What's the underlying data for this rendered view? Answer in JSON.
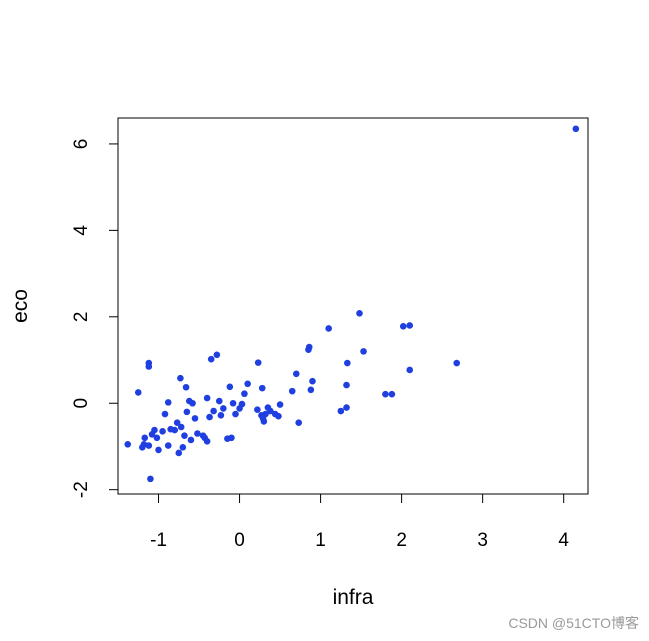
{
  "chart_data": {
    "type": "scatter",
    "xlabel": "infra",
    "ylabel": "eco",
    "xlim": [
      -1.5,
      4.3
    ],
    "ylim": [
      -2.1,
      6.6
    ],
    "x_ticks": [
      -1,
      0,
      1,
      2,
      3,
      4
    ],
    "x_tick_labels": [
      "-1",
      "0",
      "1",
      "2",
      "3",
      "4"
    ],
    "y_ticks": [
      -2,
      0,
      2,
      4,
      6
    ],
    "y_tick_labels": [
      "-2",
      "0",
      "2",
      "4",
      "6"
    ],
    "grid": false,
    "colors": {
      "points": "#1f3fe0"
    },
    "points": [
      [
        4.15,
        6.35
      ],
      [
        2.68,
        0.93
      ],
      [
        2.1,
        1.8
      ],
      [
        2.02,
        1.78
      ],
      [
        2.1,
        0.77
      ],
      [
        1.88,
        0.21
      ],
      [
        1.8,
        0.21
      ],
      [
        1.53,
        1.2
      ],
      [
        1.48,
        2.08
      ],
      [
        1.1,
        1.73
      ],
      [
        1.33,
        0.93
      ],
      [
        1.32,
        0.42
      ],
      [
        1.32,
        -0.1
      ],
      [
        1.25,
        -0.18
      ],
      [
        0.9,
        0.51
      ],
      [
        0.86,
        1.3
      ],
      [
        0.85,
        1.24
      ],
      [
        0.88,
        0.31
      ],
      [
        0.7,
        0.68
      ],
      [
        0.65,
        0.28
      ],
      [
        0.73,
        -0.45
      ],
      [
        0.5,
        -0.03
      ],
      [
        0.48,
        -0.3
      ],
      [
        0.44,
        -0.25
      ],
      [
        0.38,
        -0.18
      ],
      [
        0.35,
        -0.1
      ],
      [
        0.32,
        -0.25
      ],
      [
        0.3,
        -0.42
      ],
      [
        0.29,
        -0.35
      ],
      [
        0.27,
        -0.28
      ],
      [
        0.22,
        -0.15
      ],
      [
        0.28,
        0.35
      ],
      [
        0.23,
        0.94
      ],
      [
        0.1,
        0.45
      ],
      [
        0.06,
        0.22
      ],
      [
        0.03,
        -0.02
      ],
      [
        0.0,
        -0.12
      ],
      [
        -0.05,
        -0.25
      ],
      [
        -0.08,
        0.0
      ],
      [
        -0.1,
        -0.8
      ],
      [
        -0.12,
        0.38
      ],
      [
        -0.15,
        -0.82
      ],
      [
        -0.2,
        -0.12
      ],
      [
        -0.23,
        -0.28
      ],
      [
        -0.25,
        0.05
      ],
      [
        -0.28,
        1.12
      ],
      [
        -0.32,
        -0.18
      ],
      [
        -0.35,
        1.02
      ],
      [
        -0.37,
        -0.32
      ],
      [
        -0.4,
        0.12
      ],
      [
        -0.4,
        -0.88
      ],
      [
        -0.45,
        -0.75
      ],
      [
        -0.43,
        -0.8
      ],
      [
        -0.52,
        -0.7
      ],
      [
        -0.55,
        -0.35
      ],
      [
        -0.58,
        0.0
      ],
      [
        -0.6,
        -0.85
      ],
      [
        -0.62,
        0.05
      ],
      [
        -0.65,
        -0.2
      ],
      [
        -0.66,
        0.37
      ],
      [
        -0.68,
        -0.75
      ],
      [
        -0.7,
        -1.02
      ],
      [
        -0.72,
        -0.55
      ],
      [
        -0.73,
        0.58
      ],
      [
        -0.75,
        -1.15
      ],
      [
        -0.77,
        -0.45
      ],
      [
        -0.8,
        -0.62
      ],
      [
        -0.85,
        -0.6
      ],
      [
        -0.88,
        0.02
      ],
      [
        -0.88,
        -0.98
      ],
      [
        -0.92,
        -0.25
      ],
      [
        -0.95,
        -0.65
      ],
      [
        -1.0,
        -1.08
      ],
      [
        -1.02,
        -0.8
      ],
      [
        -1.05,
        -0.62
      ],
      [
        -1.08,
        -0.72
      ],
      [
        -1.12,
        -0.98
      ],
      [
        -1.1,
        -1.75
      ],
      [
        -1.12,
        0.93
      ],
      [
        -1.12,
        0.85
      ],
      [
        -1.17,
        -0.8
      ],
      [
        -1.18,
        -0.95
      ],
      [
        -1.2,
        -1.02
      ],
      [
        -1.25,
        0.25
      ],
      [
        -1.38,
        -0.95
      ]
    ]
  },
  "watermark": "CSDN @51CTO博客"
}
